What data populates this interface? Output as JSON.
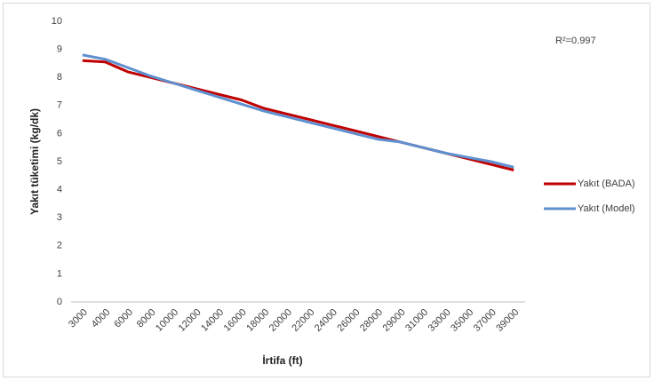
{
  "chart_data": {
    "type": "line",
    "x_label": "İrtifa (ft)",
    "y_label": "Yakıt tüketimi (kg/dk)",
    "annotation": "R²=0.997",
    "categories": [
      "3000",
      "4000",
      "6000",
      "8000",
      "10000",
      "12000",
      "14000",
      "16000",
      "18000",
      "20000",
      "22000",
      "24000",
      "26000",
      "28000",
      "29000",
      "31000",
      "33000",
      "35000",
      "37000",
      "39000"
    ],
    "series": [
      {
        "name": "Yakıt (BADA)",
        "color": "#c00000",
        "values": [
          8.6,
          8.55,
          8.2,
          8.0,
          7.8,
          7.6,
          7.4,
          7.2,
          6.9,
          6.7,
          6.5,
          6.3,
          6.1,
          5.9,
          5.7,
          5.5,
          5.3,
          5.1,
          4.9,
          4.7
        ]
      },
      {
        "name": "Yakıt (Model)",
        "color": "#5f90cf",
        "values": [
          8.8,
          8.65,
          8.35,
          8.05,
          7.8,
          7.55,
          7.3,
          7.05,
          6.8,
          6.6,
          6.4,
          6.2,
          6.0,
          5.8,
          5.7,
          5.5,
          5.3,
          5.15,
          5.0,
          4.8
        ]
      }
    ],
    "ylim": [
      0,
      10
    ],
    "yticks": [
      0,
      1,
      2,
      3,
      4,
      5,
      6,
      7,
      8,
      9,
      10
    ],
    "grid": false,
    "legend": "right"
  }
}
